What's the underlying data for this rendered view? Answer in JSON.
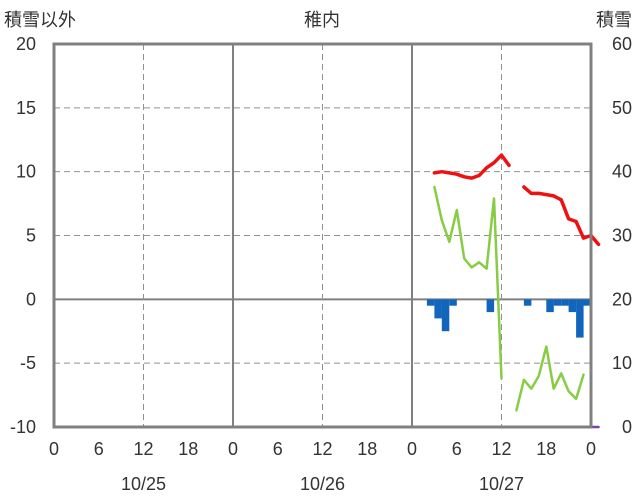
{
  "chart_data": {
    "type": "line",
    "title": "稚内",
    "left_axis_label": "積雪以外",
    "right_axis_label": "積雪",
    "left_ylim": [
      -10,
      20
    ],
    "left_ticks": [
      "20",
      "15",
      "10",
      "5",
      "0",
      "-5",
      "-10"
    ],
    "right_ylim": [
      0,
      60
    ],
    "right_ticks": [
      "60",
      "50",
      "40",
      "30",
      "20",
      "10",
      "0"
    ],
    "x_hour_ticks": [
      "0",
      "6",
      "12",
      "18",
      "0",
      "6",
      "12",
      "18",
      "0",
      "6",
      "12",
      "18",
      "0"
    ],
    "date_labels": [
      "10/25",
      "10/26",
      "10/27"
    ],
    "grid": true,
    "series": [
      {
        "color": "#ee1111",
        "axis": "left",
        "segments": [
          [
            [
              51,
              9.9
            ],
            [
              52,
              10
            ],
            [
              53,
              9.9
            ],
            [
              54,
              9.8
            ],
            [
              55,
              9.6
            ],
            [
              56,
              9.5
            ],
            [
              57,
              9.7
            ],
            [
              58,
              10.3
            ],
            [
              59,
              10.7
            ],
            [
              60,
              11.3
            ],
            [
              61,
              10.5
            ]
          ],
          [
            [
              63,
              8.8
            ],
            [
              64,
              8.3
            ],
            [
              65,
              8.3
            ],
            [
              66,
              8.2
            ],
            [
              67,
              8.1
            ],
            [
              68,
              7.8
            ],
            [
              69,
              6.3
            ],
            [
              70,
              6.1
            ],
            [
              71,
              4.8
            ],
            [
              72,
              5
            ],
            [
              73,
              4.3
            ]
          ]
        ]
      },
      {
        "color": "#88cc44",
        "axis": "left",
        "segments": [
          [
            [
              51,
              8.8
            ],
            [
              52,
              6.2
            ],
            [
              53,
              4.5
            ],
            [
              54,
              7
            ],
            [
              55,
              3.2
            ],
            [
              56,
              2.5
            ],
            [
              57,
              2.9
            ],
            [
              58,
              2.4
            ],
            [
              59,
              7.9
            ],
            [
              60,
              -6.2
            ]
          ],
          [
            [
              62,
              -8.7
            ],
            [
              63,
              -6.3
            ],
            [
              64,
              -7
            ],
            [
              65,
              -6
            ],
            [
              66,
              -3.7
            ],
            [
              67,
              -7
            ],
            [
              68,
              -5.8
            ],
            [
              69,
              -7.2
            ],
            [
              70,
              -7.8
            ],
            [
              71,
              -5.9
            ]
          ]
        ]
      },
      {
        "color": "#7744aa",
        "axis": "left",
        "segments": [
          [
            [
              51,
              -10
            ],
            [
              61,
              -10
            ]
          ],
          [
            [
              62,
              -10
            ],
            [
              73,
              -10
            ]
          ]
        ]
      }
    ],
    "bars": {
      "color": "#1166bb",
      "axis": "left",
      "hours": [
        51,
        52,
        53,
        54,
        59,
        64,
        67,
        68,
        69,
        70,
        71,
        72
      ],
      "values": [
        -0.5,
        -1.5,
        -2.5,
        -0.5,
        -1,
        -0.5,
        -1,
        -0.5,
        -0.5,
        -1,
        -3,
        -0.5
      ]
    }
  }
}
